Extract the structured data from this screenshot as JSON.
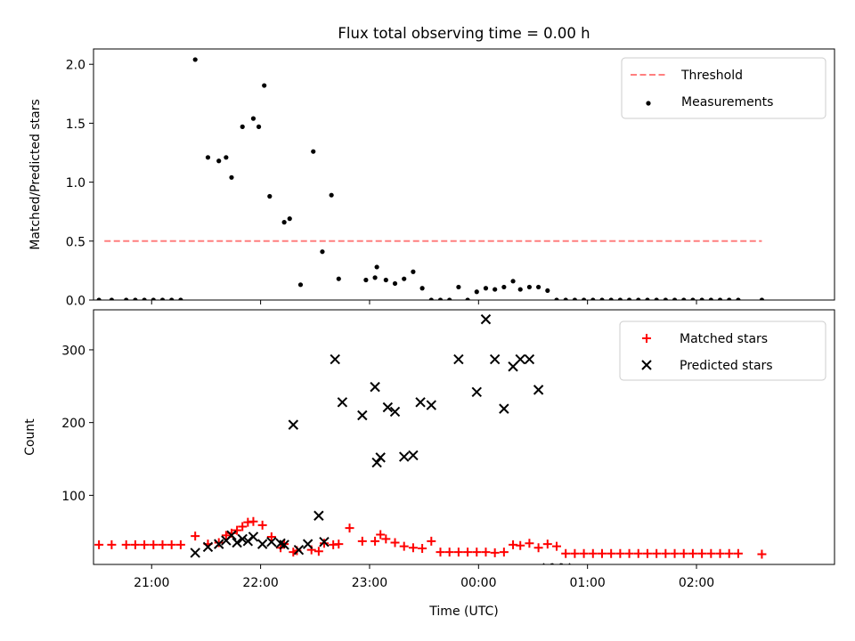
{
  "figure": {
    "title": "Flux total observing time = 0.00 h",
    "xlabel": "Time (UTC)"
  },
  "chart_data": [
    {
      "type": "scatter",
      "ylabel": "Matched/Predicted stars",
      "ylim": [
        0,
        2.13
      ],
      "yticks": [
        0.0,
        0.5,
        1.0,
        1.5,
        2.0
      ],
      "ytick_labels": [
        "0.0",
        "0.5",
        "1.0",
        "1.5",
        "2.0"
      ],
      "xlim": [
        "20:28",
        "03:16"
      ],
      "legend_position": "upper right",
      "series": [
        {
          "name": "Threshold",
          "kind": "line",
          "style": "dashed",
          "color": "#ff7f7f",
          "x": [
            "20:34",
            "02:36"
          ],
          "y": [
            0.5,
            0.5
          ]
        },
        {
          "name": "Measurements",
          "kind": "dot",
          "color": "#000000",
          "x": [
            "20:31",
            "20:38",
            "20:46",
            "20:51",
            "20:56",
            "21:01",
            "21:06",
            "21:11",
            "21:16",
            "21:24",
            "21:31",
            "21:37",
            "21:41",
            "21:44",
            "21:50",
            "21:56",
            "22:02",
            "21:59",
            "22:05",
            "22:13",
            "22:16",
            "22:29",
            "22:34",
            "22:22",
            "22:39",
            "22:43",
            "22:58",
            "23:03",
            "23:04",
            "23:09",
            "23:14",
            "23:19",
            "23:24",
            "23:29",
            "23:34",
            "23:39",
            "23:44",
            "23:49",
            "23:54",
            "23:59",
            "00:04",
            "00:09",
            "00:14",
            "00:19",
            "00:23",
            "00:28",
            "00:33",
            "00:38",
            "00:43",
            "00:48",
            "00:53",
            "00:58",
            "01:03",
            "01:08",
            "01:13",
            "01:18",
            "01:23",
            "01:28",
            "01:33",
            "01:38",
            "01:43",
            "01:48",
            "01:53",
            "01:58",
            "02:03",
            "02:08",
            "02:13",
            "02:18",
            "02:23",
            "02:36"
          ],
          "y": [
            0.0,
            0.0,
            0.0,
            0.0,
            0.0,
            0.0,
            0.0,
            0.0,
            0.0,
            2.04,
            1.21,
            1.18,
            1.21,
            1.04,
            1.47,
            1.54,
            1.82,
            1.47,
            0.88,
            0.66,
            0.69,
            1.26,
            0.41,
            0.13,
            0.89,
            0.18,
            0.17,
            0.19,
            0.28,
            0.17,
            0.14,
            0.18,
            0.24,
            0.1,
            0.0,
            0.0,
            0.0,
            0.11,
            0.0,
            0.07,
            0.1,
            0.09,
            0.11,
            0.16,
            0.09,
            0.11,
            0.11,
            0.08,
            0.0,
            0.0,
            0.0,
            0.0,
            0.0,
            0.0,
            0.0,
            0.0,
            0.0,
            0.0,
            0.0,
            0.0,
            0.0,
            0.0,
            0.0,
            0.0,
            0.0,
            0.0,
            0.0,
            0.0,
            0.0,
            0.0
          ]
        }
      ]
    },
    {
      "type": "scatter",
      "ylabel": "Count",
      "ylim": [
        5,
        355
      ],
      "yticks": [
        100,
        200,
        300
      ],
      "ytick_labels": [
        "100",
        "200",
        "300"
      ],
      "xlim": [
        "20:28",
        "03:16"
      ],
      "xticks": [
        "21:00",
        "22:00",
        "23:00",
        "00:00",
        "01:00",
        "02:00"
      ],
      "xtick_labels": [
        "21:00",
        "22:00",
        "23:00",
        "00:00",
        "01:00",
        "02:00"
      ],
      "legend_position": "upper right",
      "series": [
        {
          "name": "Matched stars",
          "kind": "plus",
          "color": "#ff0000",
          "x": [
            "20:31",
            "20:38",
            "20:46",
            "20:51",
            "20:56",
            "21:01",
            "21:06",
            "21:11",
            "21:16",
            "21:24",
            "21:31",
            "21:37",
            "21:41",
            "21:44",
            "21:47",
            "21:50",
            "21:53",
            "21:56",
            "22:01",
            "22:06",
            "22:11",
            "22:13",
            "22:18",
            "22:20",
            "22:28",
            "22:32",
            "22:35",
            "22:40",
            "22:43",
            "22:49",
            "22:56",
            "23:03",
            "23:06",
            "23:09",
            "23:14",
            "23:19",
            "23:24",
            "23:29",
            "23:34",
            "23:39",
            "23:44",
            "23:49",
            "23:54",
            "23:59",
            "00:04",
            "00:09",
            "00:14",
            "00:19",
            "00:23",
            "00:28",
            "00:33",
            "00:38",
            "00:43",
            "00:48",
            "00:53",
            "00:58",
            "01:03",
            "01:08",
            "01:13",
            "01:18",
            "01:23",
            "01:28",
            "01:33",
            "01:38",
            "01:43",
            "01:48",
            "01:53",
            "01:58",
            "02:03",
            "02:08",
            "02:13",
            "02:18",
            "02:23",
            "02:36"
          ],
          "y": [
            32,
            32,
            32,
            32,
            32,
            32,
            32,
            32,
            32,
            44,
            33,
            35,
            45,
            48,
            52,
            57,
            63,
            64,
            59,
            43,
            28,
            33,
            22,
            24,
            25,
            23,
            34,
            32,
            33,
            55,
            37,
            37,
            46,
            40,
            35,
            30,
            28,
            27,
            37,
            22,
            22,
            22,
            22,
            22,
            22,
            21,
            22,
            32,
            31,
            34,
            28,
            33,
            30,
            20,
            20,
            20,
            20,
            20,
            20,
            20,
            20,
            20,
            20,
            20,
            20,
            20,
            20,
            20,
            20,
            20,
            20,
            20,
            20,
            19
          ]
        },
        {
          "name": "Predicted stars",
          "kind": "x",
          "color": "#000000",
          "x": [
            "21:24",
            "21:31",
            "21:37",
            "21:41",
            "21:44",
            "21:47",
            "21:50",
            "21:53",
            "21:56",
            "22:01",
            "22:06",
            "22:11",
            "22:13",
            "22:18",
            "22:21",
            "22:26",
            "22:32",
            "22:35",
            "22:41",
            "22:45",
            "22:56",
            "23:03",
            "23:04",
            "23:06",
            "23:10",
            "23:14",
            "23:19",
            "23:24",
            "23:28",
            "23:34",
            "23:49",
            "23:59",
            "00:04",
            "00:09",
            "00:14",
            "00:19",
            "00:23",
            "00:28",
            "00:33",
            "00:38",
            "00:43",
            "00:48"
          ],
          "y": [
            21,
            29,
            33,
            38,
            45,
            35,
            40,
            37,
            43,
            33,
            36,
            34,
            32,
            197,
            25,
            33,
            72,
            36,
            287,
            228,
            210,
            249,
            145,
            152,
            221,
            215,
            153,
            155,
            228,
            224,
            287,
            242,
            342,
            287,
            219,
            277,
            287,
            287,
            245,
            0,
            0,
            0
          ]
        }
      ]
    }
  ]
}
